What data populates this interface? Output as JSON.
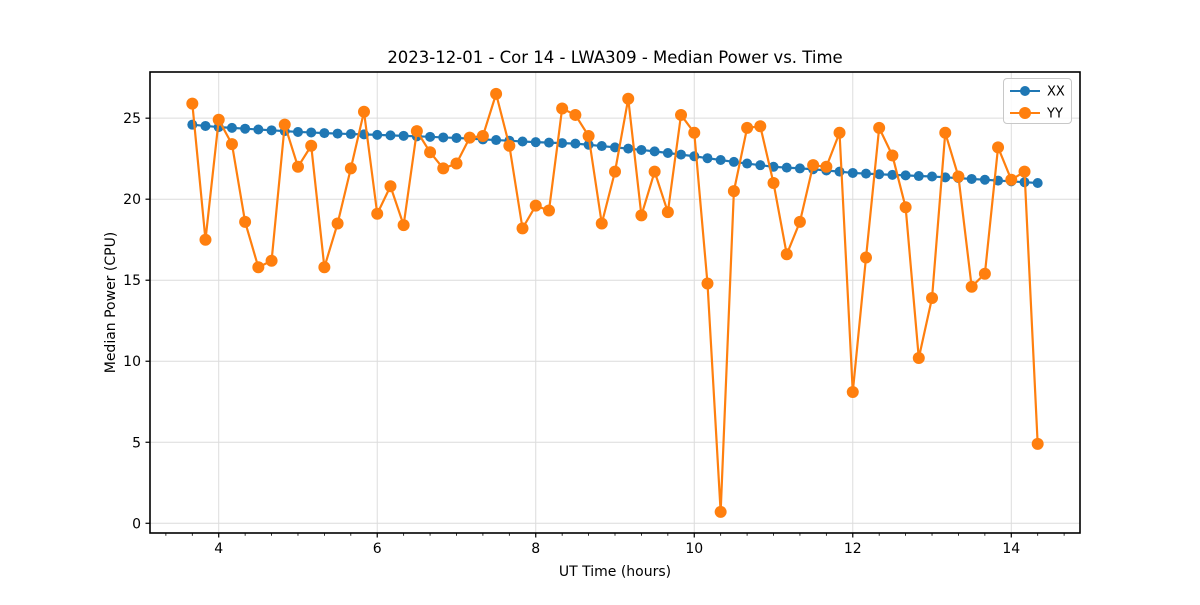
{
  "figure": {
    "title": "2023-12-01 - Cor 14 - LWA309 - Median Power vs. Time"
  },
  "chart_data": {
    "type": "line",
    "title": "2023-12-01 - Cor 14 - LWA309 - Median Power vs. Time",
    "xlabel": "UT Time (hours)",
    "ylabel": "Median Power (CPU)",
    "xlim": [
      3.133,
      14.867
    ],
    "ylim": [
      -0.6,
      27.85
    ],
    "xticks": [
      4,
      6,
      8,
      10,
      12,
      14
    ],
    "x_minor_tick_step": 0.3333,
    "yticks": [
      0,
      5,
      10,
      15,
      20,
      25
    ],
    "grid": true,
    "legend_position": "upper right",
    "x": [
      3.667,
      3.833,
      4.0,
      4.167,
      4.333,
      4.5,
      4.667,
      4.833,
      5.0,
      5.167,
      5.333,
      5.5,
      5.667,
      5.833,
      6.0,
      6.167,
      6.333,
      6.5,
      6.667,
      6.833,
      7.0,
      7.167,
      7.333,
      7.5,
      7.667,
      7.833,
      8.0,
      8.167,
      8.333,
      8.5,
      8.667,
      8.833,
      9.0,
      9.167,
      9.333,
      9.5,
      9.667,
      9.833,
      10.0,
      10.167,
      10.333,
      10.5,
      10.667,
      10.833,
      11.0,
      11.167,
      11.333,
      11.5,
      11.667,
      11.833,
      12.0,
      12.167,
      12.333,
      12.5,
      12.667,
      12.833,
      13.0,
      13.167,
      13.333,
      13.5,
      13.667,
      13.833,
      14.0,
      14.167,
      14.333
    ],
    "series": [
      {
        "name": "XX",
        "color": "#1f77b4",
        "marker_radius": 5,
        "values": [
          24.6,
          24.52,
          24.45,
          24.4,
          24.35,
          24.3,
          24.25,
          24.2,
          24.15,
          24.12,
          24.08,
          24.05,
          24.02,
          24.0,
          23.97,
          23.94,
          23.91,
          23.88,
          23.85,
          23.81,
          23.78,
          23.74,
          23.69,
          23.65,
          23.61,
          23.56,
          23.52,
          23.49,
          23.46,
          23.43,
          23.36,
          23.28,
          23.2,
          23.12,
          23.04,
          22.95,
          22.85,
          22.75,
          22.65,
          22.53,
          22.42,
          22.3,
          22.2,
          22.1,
          22.0,
          21.95,
          21.9,
          21.85,
          21.77,
          21.7,
          21.62,
          21.58,
          21.54,
          21.5,
          21.47,
          21.43,
          21.4,
          21.35,
          21.3,
          21.25,
          21.2,
          21.15,
          21.1,
          21.05,
          21.0
        ]
      },
      {
        "name": "YY",
        "color": "#ff7f0e",
        "marker_radius": 6,
        "values": [
          25.9,
          17.5,
          24.9,
          23.4,
          18.6,
          15.8,
          16.2,
          24.6,
          22.0,
          23.3,
          15.8,
          18.5,
          21.9,
          25.4,
          19.1,
          20.8,
          18.4,
          24.2,
          22.9,
          21.9,
          22.2,
          23.8,
          23.9,
          26.5,
          23.3,
          18.2,
          19.6,
          19.3,
          25.6,
          25.2,
          23.9,
          18.5,
          21.7,
          26.2,
          19.0,
          21.7,
          19.2,
          25.2,
          24.1,
          14.8,
          0.7,
          20.5,
          24.4,
          24.5,
          21.0,
          16.6,
          18.6,
          22.1,
          22.0,
          24.1,
          8.1,
          16.4,
          24.4,
          22.7,
          19.5,
          10.2,
          13.9,
          24.1,
          21.4,
          14.6,
          15.4,
          23.2,
          21.2,
          21.7,
          4.9
        ]
      }
    ]
  },
  "legend": {
    "items": [
      {
        "label": "XX",
        "color": "#1f77b4"
      },
      {
        "label": "YY",
        "color": "#ff7f0e"
      }
    ]
  },
  "colors": {
    "grid": "#dcdcdc",
    "spine": "#000000",
    "background": "#ffffff",
    "legend_border": "#c8c8c8",
    "series_blue": "#1f77b4",
    "series_orange": "#ff7f0e"
  }
}
